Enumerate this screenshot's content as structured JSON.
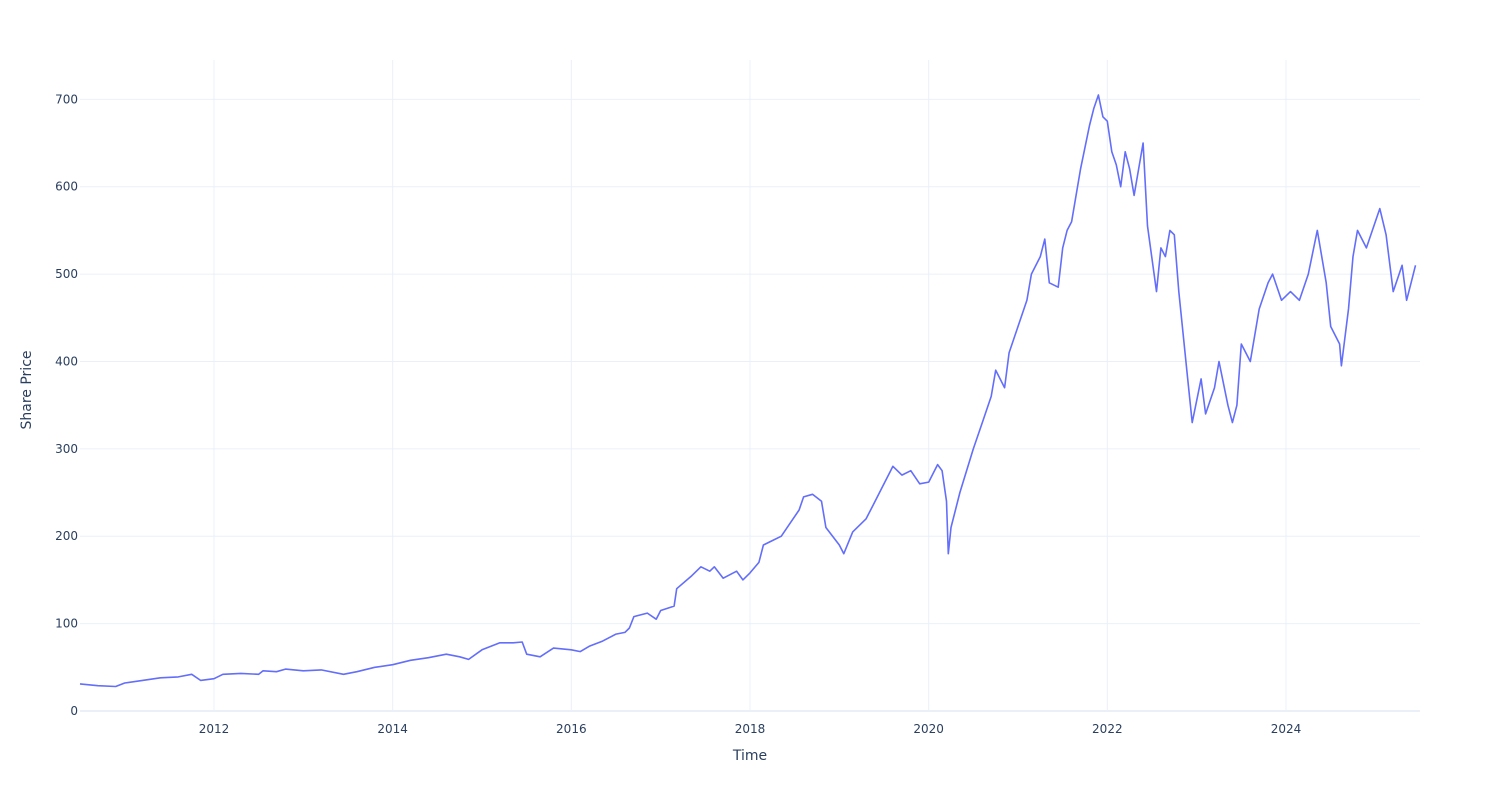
{
  "chart_data": {
    "type": "line",
    "title": "",
    "xlabel": "Time",
    "ylabel": "Share Price",
    "xlim": [
      2010.5,
      2025.5
    ],
    "ylim": [
      0,
      745
    ],
    "grid": true,
    "x_ticks": [
      {
        "value": 2012,
        "label": "2012"
      },
      {
        "value": 2014,
        "label": "2014"
      },
      {
        "value": 2016,
        "label": "2016"
      },
      {
        "value": 2018,
        "label": "2018"
      },
      {
        "value": 2020,
        "label": "2020"
      },
      {
        "value": 2022,
        "label": "2022"
      },
      {
        "value": 2024,
        "label": "2024"
      }
    ],
    "y_ticks": [
      {
        "value": 0,
        "label": "0"
      },
      {
        "value": 100,
        "label": "100"
      },
      {
        "value": 200,
        "label": "200"
      },
      {
        "value": 300,
        "label": "300"
      },
      {
        "value": 400,
        "label": "400"
      },
      {
        "value": 500,
        "label": "500"
      },
      {
        "value": 600,
        "label": "600"
      },
      {
        "value": 700,
        "label": "700"
      }
    ],
    "series": [
      {
        "name": "Share Price",
        "color": "#636efa",
        "points": [
          [
            2010.5,
            31
          ],
          [
            2010.7,
            29
          ],
          [
            2010.9,
            28
          ],
          [
            2011.0,
            32
          ],
          [
            2011.2,
            35
          ],
          [
            2011.4,
            38
          ],
          [
            2011.6,
            39
          ],
          [
            2011.75,
            42
          ],
          [
            2011.85,
            35
          ],
          [
            2012.0,
            37
          ],
          [
            2012.1,
            42
          ],
          [
            2012.3,
            43
          ],
          [
            2012.5,
            42
          ],
          [
            2012.55,
            46
          ],
          [
            2012.7,
            45
          ],
          [
            2012.8,
            48
          ],
          [
            2013.0,
            46
          ],
          [
            2013.2,
            47
          ],
          [
            2013.45,
            42
          ],
          [
            2013.6,
            45
          ],
          [
            2013.8,
            50
          ],
          [
            2014.0,
            53
          ],
          [
            2014.2,
            58
          ],
          [
            2014.4,
            61
          ],
          [
            2014.6,
            65
          ],
          [
            2014.75,
            62
          ],
          [
            2014.85,
            59
          ],
          [
            2015.0,
            70
          ],
          [
            2015.2,
            78
          ],
          [
            2015.35,
            78
          ],
          [
            2015.45,
            79
          ],
          [
            2015.5,
            65
          ],
          [
            2015.65,
            62
          ],
          [
            2015.8,
            72
          ],
          [
            2016.0,
            70
          ],
          [
            2016.1,
            68
          ],
          [
            2016.2,
            74
          ],
          [
            2016.35,
            80
          ],
          [
            2016.5,
            88
          ],
          [
            2016.6,
            90
          ],
          [
            2016.65,
            95
          ],
          [
            2016.7,
            108
          ],
          [
            2016.85,
            112
          ],
          [
            2016.95,
            105
          ],
          [
            2017.0,
            115
          ],
          [
            2017.15,
            120
          ],
          [
            2017.18,
            140
          ],
          [
            2017.35,
            155
          ],
          [
            2017.45,
            165
          ],
          [
            2017.55,
            160
          ],
          [
            2017.6,
            165
          ],
          [
            2017.7,
            152
          ],
          [
            2017.85,
            160
          ],
          [
            2017.92,
            150
          ],
          [
            2018.0,
            158
          ],
          [
            2018.1,
            170
          ],
          [
            2018.15,
            190
          ],
          [
            2018.25,
            195
          ],
          [
            2018.35,
            200
          ],
          [
            2018.45,
            215
          ],
          [
            2018.55,
            230
          ],
          [
            2018.6,
            245
          ],
          [
            2018.7,
            248
          ],
          [
            2018.8,
            240
          ],
          [
            2018.85,
            210
          ],
          [
            2019.0,
            190
          ],
          [
            2019.05,
            180
          ],
          [
            2019.15,
            205
          ],
          [
            2019.3,
            220
          ],
          [
            2019.4,
            240
          ],
          [
            2019.5,
            260
          ],
          [
            2019.6,
            280
          ],
          [
            2019.7,
            270
          ],
          [
            2019.8,
            275
          ],
          [
            2019.9,
            260
          ],
          [
            2020.0,
            262
          ],
          [
            2020.1,
            282
          ],
          [
            2020.15,
            275
          ],
          [
            2020.2,
            240
          ],
          [
            2020.22,
            180
          ],
          [
            2020.25,
            210
          ],
          [
            2020.35,
            250
          ],
          [
            2020.5,
            300
          ],
          [
            2020.6,
            330
          ],
          [
            2020.7,
            360
          ],
          [
            2020.75,
            390
          ],
          [
            2020.8,
            380
          ],
          [
            2020.85,
            370
          ],
          [
            2020.9,
            410
          ],
          [
            2021.0,
            440
          ],
          [
            2021.1,
            470
          ],
          [
            2021.15,
            500
          ],
          [
            2021.25,
            520
          ],
          [
            2021.3,
            540
          ],
          [
            2021.35,
            490
          ],
          [
            2021.45,
            485
          ],
          [
            2021.5,
            530
          ],
          [
            2021.55,
            550
          ],
          [
            2021.6,
            560
          ],
          [
            2021.7,
            620
          ],
          [
            2021.8,
            670
          ],
          [
            2021.85,
            690
          ],
          [
            2021.9,
            705
          ],
          [
            2021.95,
            680
          ],
          [
            2022.0,
            675
          ],
          [
            2022.05,
            640
          ],
          [
            2022.1,
            625
          ],
          [
            2022.15,
            600
          ],
          [
            2022.2,
            640
          ],
          [
            2022.25,
            620
          ],
          [
            2022.3,
            590
          ],
          [
            2022.4,
            650
          ],
          [
            2022.45,
            555
          ],
          [
            2022.55,
            480
          ],
          [
            2022.6,
            530
          ],
          [
            2022.65,
            520
          ],
          [
            2022.7,
            550
          ],
          [
            2022.75,
            545
          ],
          [
            2022.8,
            480
          ],
          [
            2022.9,
            380
          ],
          [
            2022.95,
            330
          ],
          [
            2023.05,
            380
          ],
          [
            2023.1,
            340
          ],
          [
            2023.2,
            370
          ],
          [
            2023.25,
            400
          ],
          [
            2023.35,
            350
          ],
          [
            2023.4,
            330
          ],
          [
            2023.45,
            350
          ],
          [
            2023.5,
            420
          ],
          [
            2023.6,
            400
          ],
          [
            2023.7,
            460
          ],
          [
            2023.8,
            490
          ],
          [
            2023.85,
            500
          ],
          [
            2023.95,
            470
          ],
          [
            2024.05,
            480
          ],
          [
            2024.15,
            470
          ],
          [
            2024.25,
            500
          ],
          [
            2024.35,
            550
          ],
          [
            2024.45,
            490
          ],
          [
            2024.5,
            440
          ],
          [
            2024.6,
            420
          ],
          [
            2024.62,
            395
          ],
          [
            2024.7,
            460
          ],
          [
            2024.75,
            520
          ],
          [
            2024.8,
            550
          ],
          [
            2024.9,
            530
          ],
          [
            2025.0,
            560
          ],
          [
            2025.05,
            575
          ],
          [
            2025.12,
            545
          ],
          [
            2025.2,
            480
          ],
          [
            2025.3,
            510
          ],
          [
            2025.35,
            470
          ],
          [
            2025.4,
            490
          ],
          [
            2025.45,
            510
          ]
        ]
      }
    ]
  }
}
